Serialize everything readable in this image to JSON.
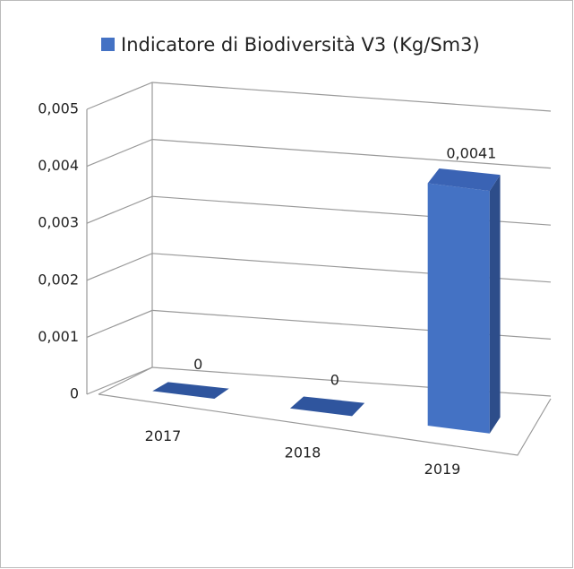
{
  "chart_data": {
    "type": "bar3d",
    "categories": [
      "2017",
      "2018",
      "2019"
    ],
    "series": [
      {
        "name": "Indicatore di Biodiversità V3 (Kg/Sm3)",
        "color": "#4472c4",
        "values": [
          0,
          0,
          0.0041
        ],
        "value_labels": [
          "0",
          "0",
          "0,0041"
        ]
      }
    ],
    "ylim": [
      0,
      0.005
    ],
    "yticks": [
      0,
      {
        "value": 0.001,
        "label": "0,001"
      },
      {
        "value": 0.002,
        "label": "0,002"
      },
      {
        "value": 0.003,
        "label": "0,003"
      },
      {
        "value": 0.004,
        "label": "0,004"
      },
      {
        "value": 0.005,
        "label": "0,005"
      }
    ],
    "grid": true,
    "legend": "top"
  }
}
